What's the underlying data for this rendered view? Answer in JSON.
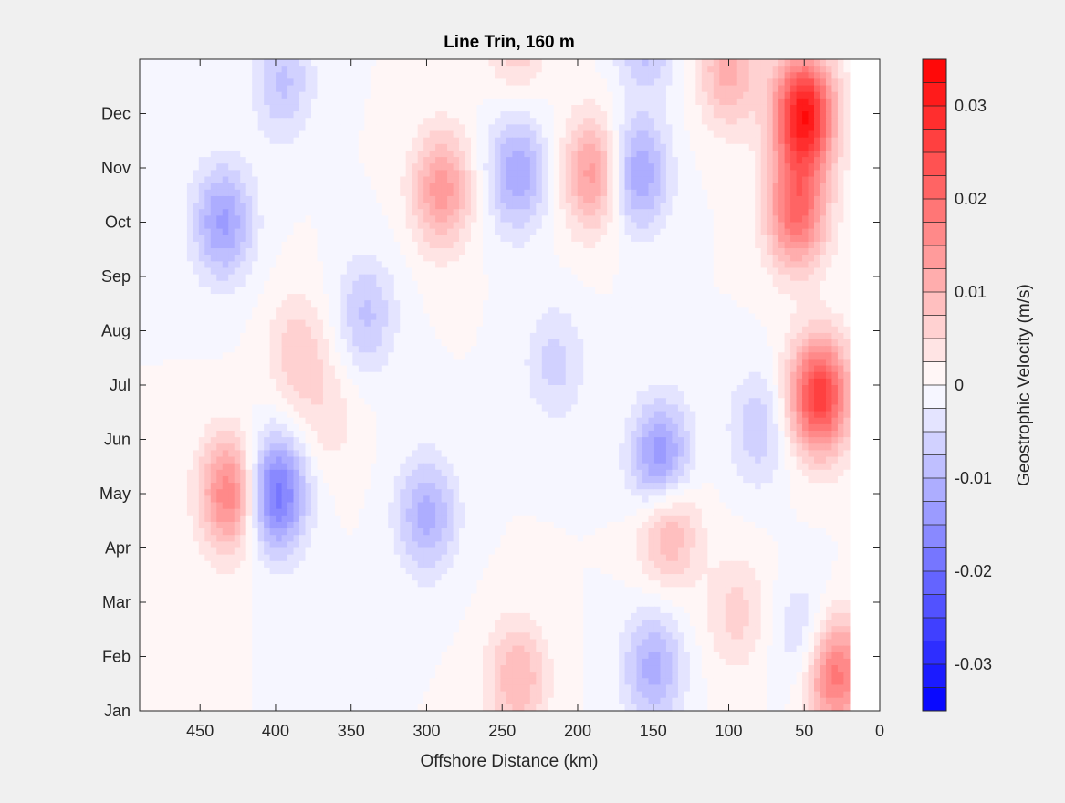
{
  "chart_data": {
    "type": "heatmap",
    "subtype": "filled-contour",
    "title": "Line Trin, 160 m",
    "xlabel": "Offshore Distance (km)",
    "ylabel": "",
    "x_reversed": true,
    "xlim": [
      490,
      0
    ],
    "x_ticks": [
      450,
      400,
      350,
      300,
      250,
      200,
      150,
      100,
      50,
      0
    ],
    "y_ticks": [
      "Jan",
      "Feb",
      "Mar",
      "Apr",
      "May",
      "Jun",
      "Jul",
      "Aug",
      "Sep",
      "Oct",
      "Nov",
      "Dec"
    ],
    "data_extent_km": [
      490,
      20
    ],
    "colorbar": {
      "label": "Geostrophic Velocity (m/s)",
      "limits": [
        -0.035,
        0.035
      ],
      "levels": 28,
      "tick_values": [
        -0.03,
        -0.02,
        -0.01,
        0,
        0.01,
        0.02,
        0.03
      ],
      "tick_labels": [
        "-0.03",
        "-0.02",
        "-0.01",
        "0",
        "0.01",
        "0.02",
        "0.03"
      ],
      "min_color": "#0000ff",
      "mid_color": "#ffffff",
      "max_color": "#ff0000"
    },
    "features": [
      {
        "km": 435,
        "month": 9.0,
        "value": -0.013
      },
      {
        "km": 430,
        "month": 4.0,
        "value": 0.018
      },
      {
        "km": 400,
        "month": 4.0,
        "value": -0.02
      },
      {
        "km": 395,
        "month": 11.6,
        "value": -0.008
      },
      {
        "km": 385,
        "month": 6.6,
        "value": 0.007
      },
      {
        "km": 365,
        "month": 5.4,
        "value": 0.004
      },
      {
        "km": 340,
        "month": 7.3,
        "value": -0.008
      },
      {
        "km": 300,
        "month": 3.6,
        "value": -0.011
      },
      {
        "km": 290,
        "month": 9.6,
        "value": 0.014
      },
      {
        "km": 240,
        "month": 9.9,
        "value": -0.012
      },
      {
        "km": 240,
        "month": 12.5,
        "value": 0.008
      },
      {
        "km": 240,
        "month": 0.6,
        "value": 0.01
      },
      {
        "km": 190,
        "month": 9.9,
        "value": 0.014
      },
      {
        "km": 215,
        "month": 6.4,
        "value": -0.006
      },
      {
        "km": 160,
        "month": 9.9,
        "value": -0.013
      },
      {
        "km": 155,
        "month": 12.6,
        "value": -0.011
      },
      {
        "km": 145,
        "month": 4.6,
        "value": -0.016
      },
      {
        "km": 140,
        "month": 3.4,
        "value": 0.012
      },
      {
        "km": 150,
        "month": 0.8,
        "value": -0.011
      },
      {
        "km": 100,
        "month": 11.8,
        "value": 0.011
      },
      {
        "km": 95,
        "month": 1.8,
        "value": 0.006
      },
      {
        "km": 80,
        "month": 5.2,
        "value": -0.007
      },
      {
        "km": 55,
        "month": 9.2,
        "value": 0.02
      },
      {
        "km": 50,
        "month": 11.0,
        "value": 0.032
      },
      {
        "km": 40,
        "month": 5.8,
        "value": 0.027
      },
      {
        "km": 48,
        "month": 1.3,
        "value": -0.007
      },
      {
        "km": 30,
        "month": 0.7,
        "value": 0.02
      }
    ]
  }
}
